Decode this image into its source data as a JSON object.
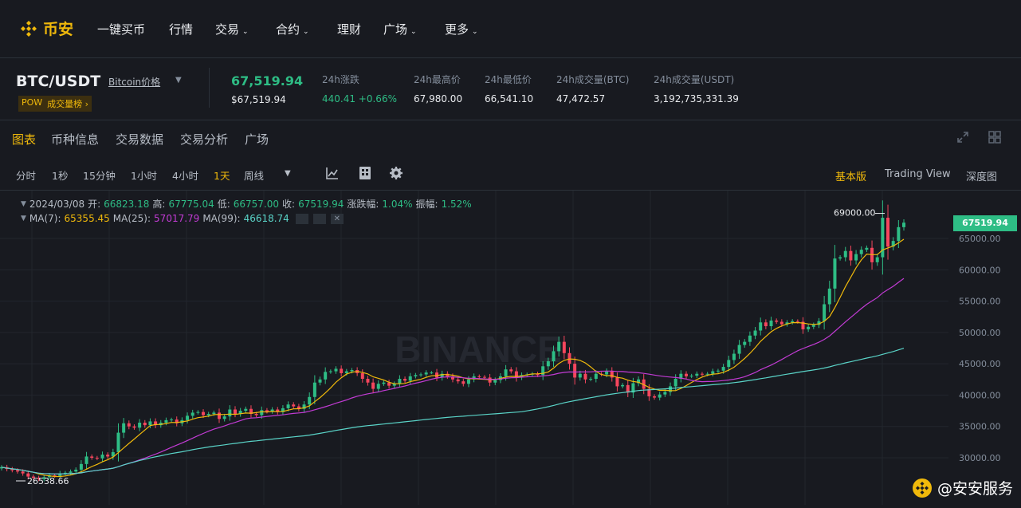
{
  "nav": {
    "logo_text": "币安",
    "items": [
      {
        "label": "一键买币",
        "caret": false
      },
      {
        "label": "行情",
        "caret": false
      },
      {
        "label": "交易",
        "caret": true
      },
      {
        "label": "合约",
        "caret": true
      },
      {
        "label": "理财",
        "caret": false
      },
      {
        "label": "广场",
        "caret": true
      },
      {
        "label": "更多",
        "caret": true
      }
    ]
  },
  "ticker": {
    "pair": "BTC/USDT",
    "pair_link": "Bitcoin价格",
    "tag_pow": "POW",
    "tag_rank": "成交量榜 ›",
    "last_price": "67,519.94",
    "last_price_usd": "$67,519.94",
    "stats": [
      {
        "label": "24h涨跌",
        "value": "440.41 +0.66%",
        "green": true
      },
      {
        "label": "24h最高价",
        "value": "67,980.00",
        "green": false
      },
      {
        "label": "24h最低价",
        "value": "66,541.10",
        "green": false
      },
      {
        "label": "24h成交量(BTC)",
        "value": "47,472.57",
        "green": false
      },
      {
        "label": "24h成交量(USDT)",
        "value": "3,192,735,331.39",
        "green": false
      }
    ]
  },
  "tabs": [
    "图表",
    "币种信息",
    "交易数据",
    "交易分析",
    "广场"
  ],
  "toolbar": {
    "intervals": [
      "分时",
      "1秒",
      "15分钟",
      "1小时",
      "4小时",
      "1天",
      "周线"
    ],
    "active_interval": "1天",
    "views": [
      "基本版",
      "Trading View",
      "深度图"
    ],
    "active_view": "基本版"
  },
  "legend": {
    "date": "2024/03/08",
    "open_label": "开:",
    "open": "66823.18",
    "high_label": "高:",
    "high": "67775.04",
    "low_label": "低:",
    "low": "66757.00",
    "close_label": "收:",
    "close": "67519.94",
    "change_label": "涨跌幅:",
    "change": "1.04%",
    "amp_label": "振幅:",
    "amp": "1.52%",
    "ma7_label": "MA(7):",
    "ma7": "65355.45",
    "ma25_label": "MA(25):",
    "ma25": "57017.79",
    "ma99_label": "MA(99):",
    "ma99": "46618.74"
  },
  "chart_data": {
    "type": "candlestick",
    "y_ticks": [
      65000,
      60000,
      55000,
      50000,
      45000,
      40000,
      35000,
      30000
    ],
    "y_tick_labels": [
      "65000.00",
      "60000.00",
      "55000.00",
      "50000.00",
      "45000.00",
      "40000.00",
      "35000.00",
      "30000.00"
    ],
    "ylim": [
      26000,
      70000
    ],
    "max_label": "69000.00",
    "min_label": "26538.66",
    "current_price": "67519.94",
    "closes": [
      28500,
      28200,
      28000,
      27800,
      27500,
      27000,
      26800,
      26600,
      26900,
      27200,
      27100,
      27500,
      27600,
      27800,
      28100,
      29000,
      30200,
      30000,
      29900,
      30500,
      30200,
      30900,
      34000,
      35500,
      35000,
      34800,
      35600,
      35200,
      35800,
      35200,
      35600,
      36000,
      36100,
      35500,
      36000,
      36700,
      37200,
      37300,
      36800,
      37000,
      37200,
      36200,
      36600,
      37700,
      37000,
      37500,
      37800,
      37000,
      36800,
      37600,
      37400,
      37700,
      37300,
      37900,
      38500,
      38200,
      37800,
      38500,
      39700,
      42000,
      42500,
      43700,
      43800,
      44200,
      43500,
      43800,
      44000,
      43500,
      42600,
      42000,
      41000,
      41800,
      42000,
      41500,
      41800,
      42600,
      42300,
      43000,
      43200,
      43300,
      43600,
      43600,
      42800,
      43400,
      43000,
      42500,
      42200,
      41800,
      42500,
      43000,
      42900,
      42800,
      42000,
      42400,
      43000,
      44100,
      43800,
      42800,
      43200,
      43300,
      43400,
      43200,
      44600,
      45400,
      47000,
      48500,
      46700,
      45000,
      42800,
      43400,
      42500,
      42600,
      43400,
      43300,
      43800,
      42800,
      41400,
      41600,
      40400,
      41900,
      42500,
      41000,
      39800,
      39600,
      40100,
      40500,
      41400,
      42600,
      43400,
      43000,
      43100,
      43400,
      43300,
      43400,
      43800,
      43900,
      44500,
      45600,
      46600,
      48000,
      48500,
      49500,
      50300,
      51600,
      51000,
      51900,
      51700,
      51300,
      51600,
      51800,
      51700,
      50500,
      50900,
      51200,
      51800,
      54500,
      57000,
      61800,
      62000,
      63000,
      61500,
      62500,
      63200,
      63500,
      61200,
      62000,
      68300,
      63700,
      64600,
      66800,
      67520
    ],
    "ma7_last": 65355.45,
    "ma25_last": 57017.79,
    "ma99_last": 46618.74
  },
  "colors": {
    "up": "#2ebd85",
    "down": "#f6465d",
    "accent": "#f0b90b",
    "ma7": "#f0b90b",
    "ma25": "#c23bd4",
    "ma99": "#5ad4c8"
  },
  "watermark": {
    "text": "@安安服务",
    "logo": "BINANCE"
  }
}
